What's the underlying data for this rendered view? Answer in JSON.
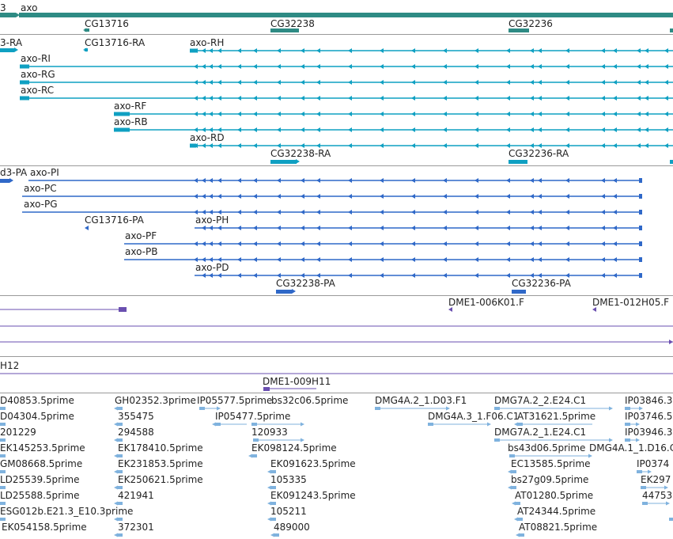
{
  "colors": {
    "gene": "#2e8b84",
    "transcript": "#0fa0c2",
    "protein": "#2f68c8",
    "clone": "#6a4fb0",
    "est": "#7fb2de",
    "separator": "#9a9a9a"
  },
  "genes": {
    "labels": [
      "3",
      "axo",
      "CG13716",
      "CG32238",
      "CG32236"
    ]
  },
  "transcripts": {
    "labels": [
      "3-RA",
      "CG13716-RA",
      "axo-RH",
      "axo-RI",
      "axo-RG",
      "axo-RC",
      "axo-RF",
      "axo-RB",
      "axo-RD",
      "CG32238-RA",
      "CG32236-RA"
    ]
  },
  "proteins": {
    "labels": [
      "d3-PA",
      "axo-PI",
      "axo-PC",
      "axo-PG",
      "CG13716-PA",
      "axo-PH",
      "axo-PF",
      "axo-PB",
      "axo-PD",
      "CG32238-PA",
      "CG32236-PA"
    ]
  },
  "clones": {
    "labels": [
      "DME1-006K01.F",
      "DME1-012H05.F",
      "H12",
      "DME1-009H11"
    ]
  },
  "ests": {
    "labels": [
      "D40853.5prime",
      "D04304.5prime",
      "201229",
      "EK145253.5prime",
      "GM08668.5prime",
      "LD25539.5prime",
      "LD25588.5prime",
      "ESG012b.E21.3_E10.3prime",
      "EK054158.5prime",
      "GH02352.3prime",
      "355475",
      "294588",
      "EK178410.5prime",
      "EK231853.5prime",
      "EK250621.5prime",
      "421941",
      "372301",
      "IP05577.5prime",
      "IP05477.5prime",
      "120933",
      "EK098124.5prime",
      "bs32c06.5prime",
      "EK091623.5prime",
      "105335",
      "EK091243.5prime",
      "105211",
      "489000",
      "DMG4A.2_1.D03.F1",
      "DMG4A.3_1.F06.C1",
      "DMG7A.2_2.E24.C1",
      "AT31621.5prime",
      "DMG7A.2_1.E24.C1",
      "bs43d06.5prime",
      "DMG4A.1_1.D16.C",
      "EC13585.5prime",
      "bs27g09.5prime",
      "AT01280.5prime",
      "AT24344.5prime",
      "AT08821.5prime",
      "IP03846.3",
      "IP03746.5",
      "IP03946.3",
      "IP0374",
      "EK297",
      "44753"
    ]
  }
}
